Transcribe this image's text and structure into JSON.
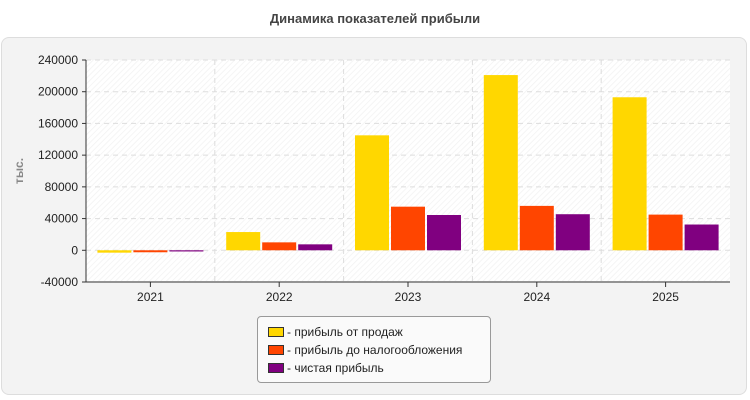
{
  "chart_data": {
    "type": "bar",
    "title": "Динамика показателей прибыли",
    "ylabel": "тыс.",
    "xlabel": "",
    "categories": [
      "2021",
      "2022",
      "2023",
      "2024",
      "2025"
    ],
    "ylim": [
      -40000,
      240000
    ],
    "yticks": [
      -40000,
      0,
      40000,
      80000,
      120000,
      160000,
      200000,
      240000
    ],
    "grid": true,
    "legend_position": "bottom",
    "series": [
      {
        "name": "- прибыль от продаж",
        "color": "#FFD700",
        "values": [
          -3000,
          23000,
          145000,
          221000,
          193000
        ]
      },
      {
        "name": "- прибыль до налогообложения",
        "color": "#FF4500",
        "values": [
          -2500,
          10000,
          55000,
          56000,
          45000
        ]
      },
      {
        "name": "- чистая прибыль",
        "color": "#800080",
        "values": [
          -1500,
          7500,
          44500,
          45500,
          32500
        ]
      }
    ]
  }
}
